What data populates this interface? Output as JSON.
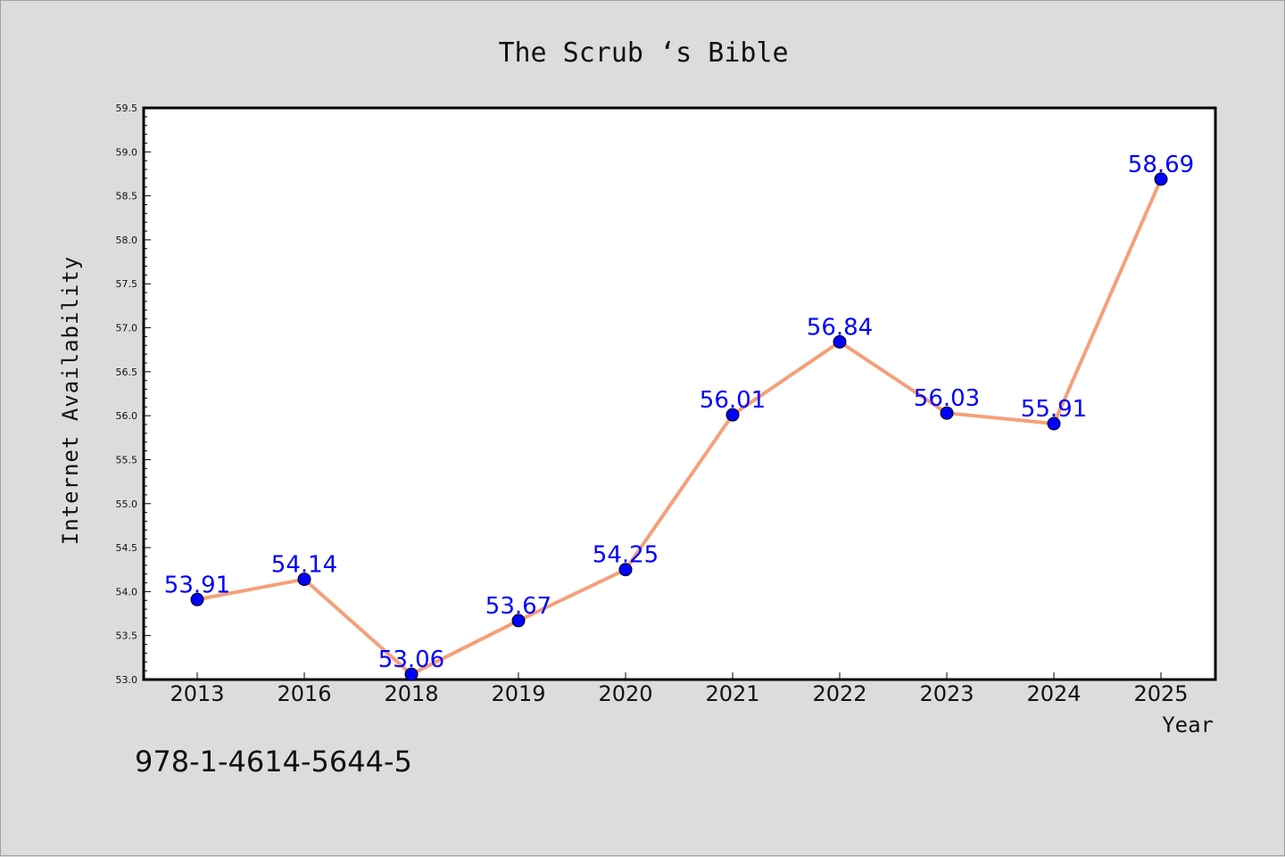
{
  "chart_data": {
    "type": "line",
    "title": "The Scrub ‘s Bible",
    "xlabel": "Year",
    "ylabel": "Internet Availability",
    "categories": [
      "2013",
      "2016",
      "2018",
      "2019",
      "2020",
      "2021",
      "2022",
      "2023",
      "2024",
      "2025"
    ],
    "values": [
      53.91,
      54.14,
      53.06,
      53.67,
      54.25,
      56.01,
      56.84,
      56.03,
      55.91,
      58.69
    ],
    "data_labels": [
      "53.91",
      "54.14",
      "53.06",
      "53.67",
      "54.25",
      "56.01",
      "56.84",
      "56.03",
      "55.91",
      "58.69"
    ],
    "ylim": [
      53.0,
      59.5
    ],
    "yticks": [
      "53.0",
      "53.5",
      "54.0",
      "54.5",
      "55.0",
      "55.5",
      "56.0",
      "56.5",
      "57.0",
      "57.5",
      "58.0",
      "58.5",
      "59.0",
      "59.5"
    ],
    "grid": false,
    "legend": "none",
    "line_color": "#f4a07a",
    "marker_color": "#0000ff",
    "label_color": "#0000ff"
  },
  "footer": {
    "isbn": "978-1-4614-5644-5"
  }
}
